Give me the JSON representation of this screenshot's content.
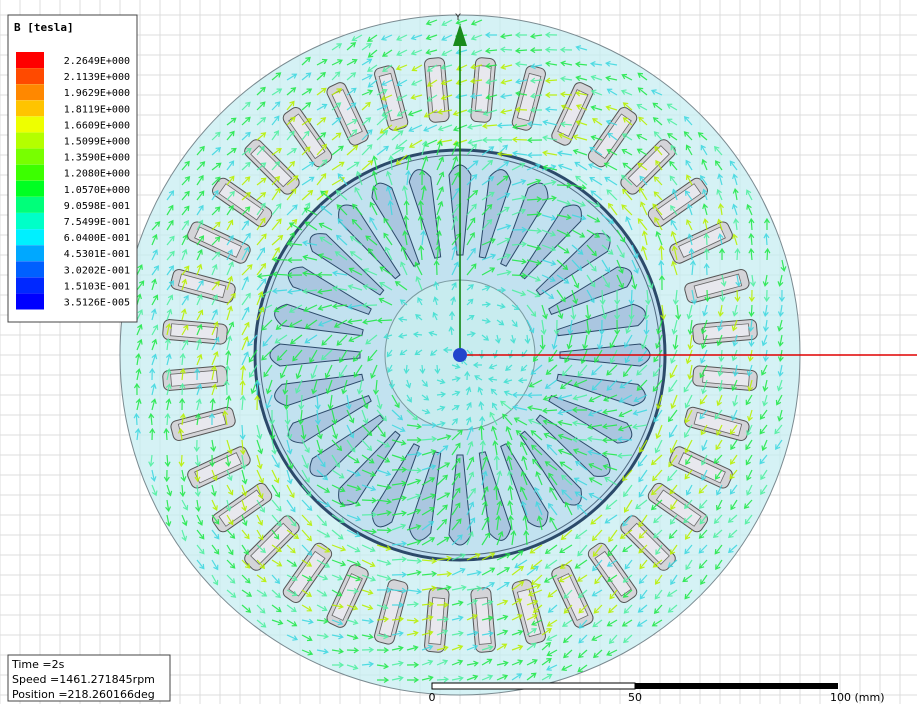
{
  "legend": {
    "title": "B [tesla]",
    "items": [
      {
        "label": "2.2649E+000",
        "color": "#ff0000"
      },
      {
        "label": "2.1139E+000",
        "color": "#ff4a00"
      },
      {
        "label": "1.9629E+000",
        "color": "#ff8800"
      },
      {
        "label": "1.8119E+000",
        "color": "#ffc400"
      },
      {
        "label": "1.6609E+000",
        "color": "#eeff00"
      },
      {
        "label": "1.5099E+000",
        "color": "#b4ff00"
      },
      {
        "label": "1.3590E+000",
        "color": "#78ff00"
      },
      {
        "label": "1.2080E+000",
        "color": "#3cff00"
      },
      {
        "label": "1.0570E+000",
        "color": "#00ff22"
      },
      {
        "label": "9.0598E-001",
        "color": "#00ff7a"
      },
      {
        "label": "7.5499E-001",
        "color": "#00ffc8"
      },
      {
        "label": "6.0400E-001",
        "color": "#00f0ff"
      },
      {
        "label": "4.5301E-001",
        "color": "#00a8ff"
      },
      {
        "label": "3.0202E-001",
        "color": "#0060ff"
      },
      {
        "label": "1.5103E-001",
        "color": "#0028ff"
      },
      {
        "label": "3.5126E-005",
        "color": "#0000ff"
      }
    ]
  },
  "axis_label": "Y",
  "info": {
    "time": "Time   =2s",
    "speed": "Speed   =1461.271845rpm",
    "position": "Position =218.260166deg"
  },
  "scale_bar": {
    "labels": [
      "0",
      "50",
      "100 (mm)"
    ]
  }
}
